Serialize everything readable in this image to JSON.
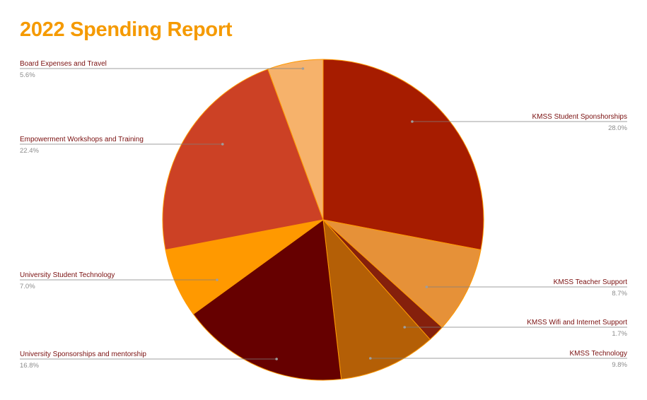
{
  "chart_data": {
    "type": "pie",
    "title": "2022 Spending Report",
    "slices": [
      {
        "label": "KMSS Student Sponshorships",
        "percent_label": "28.0%",
        "value": 28.0,
        "color": "#a61c00"
      },
      {
        "label": "KMSS Teacher Support",
        "percent_label": "8.7%",
        "value": 8.7,
        "color": "#e69138"
      },
      {
        "label": "KMSS Wifi and Internet Support",
        "percent_label": "1.7%",
        "value": 1.7,
        "color": "#85200c"
      },
      {
        "label": "KMSS Technology",
        "percent_label": "9.8%",
        "value": 9.8,
        "color": "#b45f06"
      },
      {
        "label": "University Sponsorships and mentorship",
        "percent_label": "16.8%",
        "value": 16.8,
        "color": "#660000"
      },
      {
        "label": "University Student Technology",
        "percent_label": "7.0%",
        "value": 7.0,
        "color": "#ff9900"
      },
      {
        "label": "Empowerment  Workshops and Training",
        "percent_label": "22.4%",
        "value": 22.4,
        "color": "#cc4125"
      },
      {
        "label": "Board Expenses and Travel",
        "percent_label": "5.6%",
        "value": 5.6,
        "color": "#f6b26b"
      }
    ],
    "slice_border_color": "#ff9900",
    "leader_color": "#7f7f7f",
    "title_color": "#f59a00"
  }
}
